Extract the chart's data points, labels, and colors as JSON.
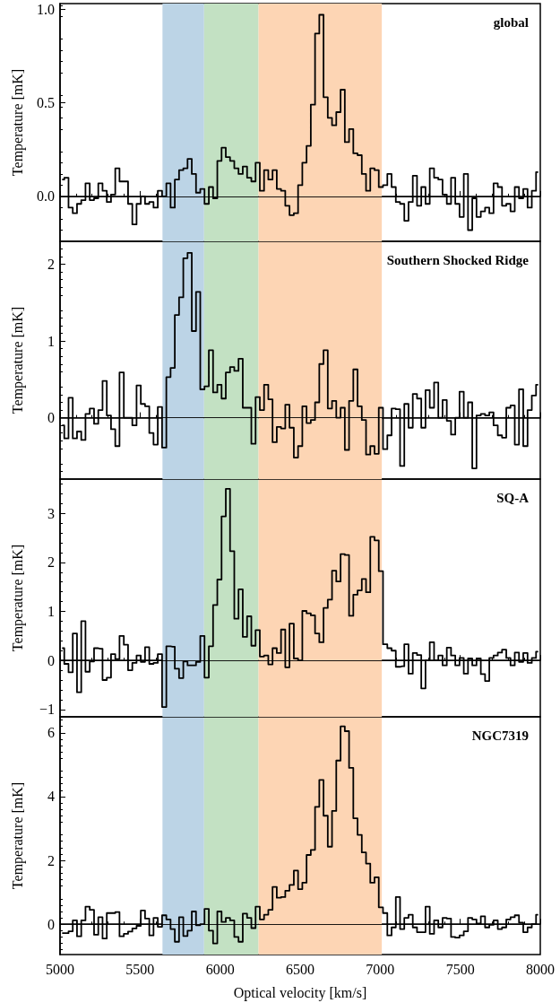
{
  "chart_data": [
    {
      "type": "step",
      "title": "global",
      "ylabel": "Temperature [mK]",
      "xlim": [
        5000,
        8000
      ],
      "xticks": [
        5000,
        5500,
        6000,
        6500,
        7000,
        7500,
        8000
      ],
      "ylim": [
        -0.24,
        1.03
      ],
      "yticks": [
        {
          "value": 0,
          "label": "0.0"
        },
        {
          "value": 0.5,
          "label": "0.5"
        },
        {
          "value": 1,
          "label": "1.0"
        }
      ],
      "tick_labels": "y",
      "bands": [
        {
          "axis": "x",
          "from": 5640,
          "to": 5900,
          "color": "#bcd4e6"
        },
        {
          "axis": "x",
          "from": 5900,
          "to": 6240,
          "color": "#c3e1c3"
        },
        {
          "axis": "x",
          "from": 6240,
          "to": 7010,
          "color": "#fdd5b4"
        }
      ],
      "ref_lines": [
        {
          "axis": "y",
          "value": 0,
          "color": "#000000"
        }
      ],
      "x": [
        5013,
        5040,
        5066,
        5093,
        5119,
        5146,
        5172,
        5199,
        5226,
        5252,
        5279,
        5305,
        5332,
        5358,
        5385,
        5412,
        5438,
        5465,
        5491,
        5518,
        5544,
        5571,
        5597,
        5624,
        5651,
        5677,
        5704,
        5730,
        5757,
        5783,
        5810,
        5836,
        5863,
        5889,
        5916,
        5943,
        5969,
        5996,
        6022,
        6049,
        6075,
        6102,
        6128,
        6155,
        6182,
        6208,
        6235,
        6261,
        6288,
        6314,
        6341,
        6367,
        6394,
        6420,
        6447,
        6474,
        6500,
        6527,
        6553,
        6580,
        6606,
        6633,
        6659,
        6686,
        6712,
        6739,
        6766,
        6792,
        6819,
        6845,
        6872,
        6898,
        6925,
        6951,
        6978,
        7004,
        7031,
        7058,
        7084,
        7111,
        7137,
        7164,
        7190,
        7217,
        7243,
        7270,
        7296,
        7323,
        7350,
        7376,
        7403,
        7429,
        7456,
        7482,
        7509,
        7535,
        7562,
        7588,
        7615,
        7642,
        7668,
        7695,
        7721,
        7748,
        7774,
        7801,
        7827,
        7854,
        7880,
        7907,
        7934,
        7960,
        7987
      ],
      "series": [
        {
          "color": "#000000",
          "values": [
            0.09,
            0.1,
            -0.06,
            -0.09,
            -0.04,
            -0.02,
            0.07,
            -0.02,
            -0.01,
            0.07,
            0.03,
            -0.03,
            0.01,
            0.15,
            0.08,
            0.08,
            -0.04,
            -0.15,
            -0.04,
            0.0,
            -0.04,
            -0.03,
            -0.06,
            0.03,
            0.0,
            0.07,
            -0.06,
            0.09,
            0.14,
            0.15,
            0.2,
            0.12,
            0.02,
            0.04,
            -0.04,
            0.05,
            -0.01,
            0.19,
            0.26,
            0.21,
            0.19,
            0.15,
            0.12,
            0.16,
            0.1,
            0.08,
            0.18,
            0.03,
            0.14,
            0.09,
            0.14,
            0.04,
            0.03,
            -0.05,
            -0.1,
            -0.09,
            0.06,
            0.18,
            0.27,
            0.49,
            0.87,
            0.97,
            0.53,
            0.42,
            0.38,
            0.45,
            0.57,
            0.29,
            0.36,
            0.23,
            0.22,
            0.12,
            0.03,
            0.15,
            0.14,
            0.05,
            0.06,
            0.12,
            0.05,
            -0.03,
            -0.04,
            -0.13,
            -0.03,
            0.11,
            -0.05,
            0.05,
            -0.04,
            0.15,
            0.1,
            0.09,
            0.01,
            -0.04,
            0.1,
            -0.04,
            -0.11,
            0.12,
            -0.18,
            -0.01,
            -0.11,
            -0.08,
            -0.06,
            -0.09,
            0.07,
            0.05,
            -0.05,
            -0.04,
            -0.08,
            0.05,
            -0.01,
            0.04,
            -0.06,
            0.03,
            0.13
          ]
        }
      ]
    },
    {
      "type": "step",
      "title": "Southern Shocked Ridge",
      "ylabel": "Temperature [mK]",
      "xlim": [
        5000,
        8000
      ],
      "xticks": [
        5000,
        5500,
        6000,
        6500,
        7000,
        7500,
        8000
      ],
      "ylim": [
        -0.8,
        2.3
      ],
      "yticks": [
        0,
        1,
        2
      ],
      "tick_labels": "y",
      "bands": [
        {
          "axis": "x",
          "from": 5640,
          "to": 5900,
          "color": "#bcd4e6"
        },
        {
          "axis": "x",
          "from": 5900,
          "to": 6240,
          "color": "#c3e1c3"
        },
        {
          "axis": "x",
          "from": 6240,
          "to": 7010,
          "color": "#fdd5b4"
        }
      ],
      "ref_lines": [
        {
          "axis": "y",
          "value": 0,
          "color": "#000000"
        }
      ],
      "x": [
        5013,
        5040,
        5066,
        5093,
        5119,
        5146,
        5172,
        5199,
        5226,
        5252,
        5279,
        5305,
        5332,
        5358,
        5385,
        5412,
        5438,
        5465,
        5491,
        5518,
        5544,
        5571,
        5597,
        5624,
        5651,
        5677,
        5704,
        5730,
        5757,
        5783,
        5810,
        5836,
        5863,
        5889,
        5916,
        5943,
        5969,
        5996,
        6022,
        6049,
        6075,
        6102,
        6128,
        6155,
        6182,
        6208,
        6235,
        6261,
        6288,
        6314,
        6341,
        6367,
        6394,
        6420,
        6447,
        6474,
        6500,
        6527,
        6553,
        6580,
        6606,
        6633,
        6659,
        6686,
        6712,
        6739,
        6766,
        6792,
        6819,
        6845,
        6872,
        6898,
        6925,
        6951,
        6978,
        7004,
        7031,
        7058,
        7084,
        7111,
        7137,
        7164,
        7190,
        7217,
        7243,
        7270,
        7296,
        7323,
        7350,
        7376,
        7403,
        7429,
        7456,
        7482,
        7509,
        7535,
        7562,
        7588,
        7615,
        7642,
        7668,
        7695,
        7721,
        7748,
        7774,
        7801,
        7827,
        7854,
        7880,
        7907,
        7934,
        7960,
        7987
      ],
      "series": [
        {
          "color": "#000000",
          "values": [
            -0.1,
            -0.27,
            0.26,
            -0.27,
            -0.18,
            -0.29,
            0.05,
            0.12,
            -0.08,
            0.1,
            0.48,
            0.03,
            -0.15,
            -0.37,
            0.59,
            0.0,
            0.0,
            -0.1,
            0.42,
            0.18,
            0.15,
            -0.2,
            -0.35,
            0.14,
            -0.39,
            0.53,
            0.65,
            1.34,
            1.57,
            2.08,
            2.15,
            1.13,
            1.64,
            0.37,
            0.41,
            0.88,
            0.33,
            0.43,
            0.25,
            0.59,
            0.66,
            0.61,
            0.77,
            0.13,
            0.13,
            -0.34,
            0.27,
            0.1,
            0.43,
            0.24,
            -0.32,
            -0.12,
            -0.14,
            0.17,
            -0.13,
            -0.52,
            -0.37,
            0.15,
            -0.07,
            -0.03,
            0.2,
            0.7,
            0.88,
            0.12,
            0.22,
            0.0,
            0.13,
            -0.42,
            0.22,
            0.63,
            0.15,
            -0.03,
            -0.48,
            -0.37,
            -0.47,
            0.13,
            -0.41,
            -0.23,
            0.12,
            0.11,
            -0.63,
            0.18,
            -0.13,
            0.31,
            0.25,
            -0.13,
            0.36,
            0.13,
            0.46,
            0.0,
            0.23,
            -0.04,
            -0.22,
            0.0,
            0.34,
            0.0,
            0.2,
            -0.66,
            0.03,
            0.05,
            0.03,
            0.07,
            -0.1,
            -0.23,
            -0.26,
            0.13,
            0.16,
            -0.35,
            0.37,
            -0.37,
            0.1,
            0.29,
            0.43
          ]
        }
      ]
    },
    {
      "type": "step",
      "title": "SQ-A",
      "ylabel": "Temperature [mK]",
      "xlim": [
        5000,
        8000
      ],
      "xticks": [
        5000,
        5500,
        6000,
        6500,
        7000,
        7500,
        8000
      ],
      "ylim": [
        -1.15,
        3.7
      ],
      "yticks": [
        {
          "value": -1,
          "label": "−1"
        },
        0,
        1,
        2,
        3
      ],
      "tick_labels": "y",
      "bands": [
        {
          "axis": "x",
          "from": 5640,
          "to": 5900,
          "color": "#bcd4e6"
        },
        {
          "axis": "x",
          "from": 5900,
          "to": 6240,
          "color": "#c3e1c3"
        },
        {
          "axis": "x",
          "from": 6240,
          "to": 7010,
          "color": "#fdd5b4"
        }
      ],
      "ref_lines": [
        {
          "axis": "y",
          "value": 0,
          "color": "#000000"
        }
      ],
      "x": [
        5013,
        5040,
        5066,
        5093,
        5119,
        5146,
        5172,
        5199,
        5226,
        5252,
        5279,
        5305,
        5332,
        5358,
        5385,
        5412,
        5438,
        5465,
        5491,
        5518,
        5544,
        5571,
        5597,
        5624,
        5651,
        5677,
        5704,
        5730,
        5757,
        5783,
        5810,
        5836,
        5863,
        5889,
        5916,
        5943,
        5969,
        5996,
        6022,
        6049,
        6075,
        6102,
        6128,
        6155,
        6182,
        6208,
        6235,
        6261,
        6288,
        6314,
        6341,
        6367,
        6394,
        6420,
        6447,
        6474,
        6500,
        6527,
        6553,
        6580,
        6606,
        6633,
        6659,
        6686,
        6712,
        6739,
        6766,
        6792,
        6819,
        6845,
        6872,
        6898,
        6925,
        6951,
        6978,
        7004,
        7031,
        7058,
        7084,
        7111,
        7137,
        7164,
        7190,
        7217,
        7243,
        7270,
        7296,
        7323,
        7350,
        7376,
        7403,
        7429,
        7456,
        7482,
        7509,
        7535,
        7562,
        7588,
        7615,
        7642,
        7668,
        7695,
        7721,
        7748,
        7774,
        7801,
        7827,
        7854,
        7880,
        7907,
        7934,
        7960,
        7987
      ],
      "series": [
        {
          "color": "#000000",
          "values": [
            0.25,
            -0.07,
            -0.24,
            0.55,
            -0.65,
            0.8,
            -0.23,
            -0.02,
            0.25,
            0.24,
            -0.4,
            -0.35,
            0.13,
            0.03,
            0.5,
            0.32,
            -0.2,
            -0.05,
            0.1,
            -0.03,
            0.27,
            -0.07,
            -0.05,
            0.13,
            -0.95,
            0.29,
            0.28,
            -0.17,
            -0.36,
            -0.02,
            -0.1,
            -0.1,
            -0.03,
            0.5,
            -0.35,
            0.29,
            1.13,
            1.65,
            2.94,
            3.5,
            2.23,
            0.85,
            1.45,
            0.48,
            0.9,
            0.3,
            0.62,
            0.08,
            0.1,
            -0.08,
            0.25,
            0.15,
            0.63,
            -0.14,
            0.75,
            0.04,
            0.0,
            1.01,
            0.96,
            0.92,
            0.55,
            0.37,
            1.07,
            1.24,
            1.83,
            1.61,
            2.17,
            2.15,
            0.91,
            1.34,
            1.43,
            1.66,
            1.39,
            2.52,
            2.45,
            1.82,
            0.33,
            0.25,
            0.2,
            -0.13,
            -0.12,
            0.33,
            -0.27,
            0.15,
            0.11,
            -0.57,
            0.0,
            0.37,
            0.0,
            0.1,
            -0.1,
            0.26,
            0.1,
            -0.1,
            0.05,
            -0.27,
            0.04,
            -0.1,
            0.04,
            -0.28,
            -0.42,
            0.05,
            0.1,
            0.16,
            0.22,
            0.05,
            -0.1,
            0.16,
            -0.03,
            0.15,
            -0.05,
            0.05,
            0.18
          ]
        }
      ]
    },
    {
      "type": "step",
      "title": "NGC7319",
      "ylabel": "Temperature [mK]",
      "xlabel": "Optical velocity [km/s]",
      "xlim": [
        5000,
        8000
      ],
      "xticks": [
        5000,
        5500,
        6000,
        6500,
        7000,
        7500,
        8000
      ],
      "ylim": [
        -0.95,
        6.5
      ],
      "yticks": [
        0,
        2,
        4,
        6
      ],
      "bands": [
        {
          "axis": "x",
          "from": 5640,
          "to": 5900,
          "color": "#bcd4e6"
        },
        {
          "axis": "x",
          "from": 5900,
          "to": 6240,
          "color": "#c3e1c3"
        },
        {
          "axis": "x",
          "from": 6240,
          "to": 7010,
          "color": "#fdd5b4"
        }
      ],
      "ref_lines": [
        {
          "axis": "y",
          "value": 0,
          "color": "#000000"
        }
      ],
      "x": [
        5013,
        5040,
        5066,
        5093,
        5119,
        5146,
        5172,
        5199,
        5226,
        5252,
        5279,
        5305,
        5332,
        5358,
        5385,
        5412,
        5438,
        5465,
        5491,
        5518,
        5544,
        5571,
        5597,
        5624,
        5651,
        5677,
        5704,
        5730,
        5757,
        5783,
        5810,
        5836,
        5863,
        5889,
        5916,
        5943,
        5969,
        5996,
        6022,
        6049,
        6075,
        6102,
        6128,
        6155,
        6182,
        6208,
        6235,
        6261,
        6288,
        6314,
        6341,
        6367,
        6394,
        6420,
        6447,
        6474,
        6500,
        6527,
        6553,
        6580,
        6606,
        6633,
        6659,
        6686,
        6712,
        6739,
        6766,
        6792,
        6819,
        6845,
        6872,
        6898,
        6925,
        6951,
        6978,
        7004,
        7031,
        7058,
        7084,
        7111,
        7137,
        7164,
        7190,
        7217,
        7243,
        7270,
        7296,
        7323,
        7350,
        7376,
        7403,
        7429,
        7456,
        7482,
        7509,
        7535,
        7562,
        7588,
        7615,
        7642,
        7668,
        7695,
        7721,
        7748,
        7774,
        7801,
        7827,
        7854,
        7880,
        7907,
        7934,
        7960,
        7987
      ],
      "series": [
        {
          "color": "#000000",
          "values": [
            -0.28,
            -0.28,
            -0.22,
            0.12,
            -0.38,
            0.12,
            0.55,
            0.45,
            -0.33,
            0.22,
            -0.45,
            0.35,
            0.35,
            0.38,
            -0.38,
            -0.3,
            -0.23,
            -0.13,
            -0.05,
            0.43,
            0.18,
            -0.35,
            0.2,
            -0.08,
            0.28,
            0.15,
            -0.15,
            -0.55,
            0.22,
            -0.37,
            -0.2,
            0.4,
            -0.03,
            0.0,
            0.48,
            -0.2,
            -0.6,
            0.4,
            0.07,
            0.2,
            0.12,
            -0.4,
            -0.55,
            0.33,
            0.2,
            -0.12,
            0.55,
            0.15,
            0.3,
            0.45,
            1.17,
            0.83,
            0.85,
            1.05,
            1.23,
            1.68,
            1.1,
            1.3,
            2.17,
            2.33,
            3.68,
            4.52,
            3.4,
            2.43,
            3.55,
            5.13,
            6.2,
            6.05,
            4.9,
            3.32,
            2.8,
            2.25,
            1.9,
            1.3,
            1.47,
            0.53,
            0.35,
            -0.35,
            -0.1,
            0.85,
            -0.15,
            0.2,
            0.3,
            -0.1,
            -0.25,
            -0.25,
            0.55,
            -0.3,
            0.12,
            -0.1,
            0.2,
            0.18,
            -0.4,
            -0.42,
            -0.35,
            -0.22,
            0.2,
            0.15,
            0.02,
            0.25,
            -0.1,
            -0.02,
            0.12,
            -0.15,
            -0.1,
            0.15,
            0.22,
            0.28,
            0.05,
            -0.25,
            -0.1,
            0.0,
            0.3
          ]
        }
      ]
    }
  ]
}
